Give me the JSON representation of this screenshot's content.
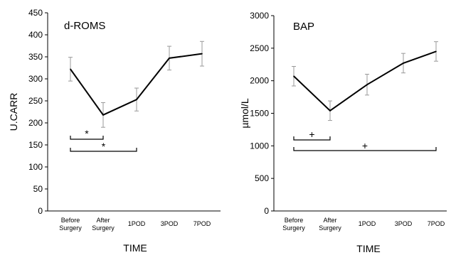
{
  "chart_data": [
    {
      "type": "line",
      "title": "d-ROMS",
      "xlabel": "TIME",
      "ylabel": "U.CARR",
      "ylim": [
        0,
        450
      ],
      "yticks": [
        0,
        50,
        100,
        150,
        200,
        250,
        300,
        350,
        400,
        450
      ],
      "categories": [
        [
          "Before",
          "Surgery"
        ],
        [
          "After",
          "Surgery"
        ],
        [
          "1POD"
        ],
        [
          "3POD"
        ],
        [
          "7POD"
        ]
      ],
      "series": [
        {
          "values": [
            322,
            218,
            253,
            347,
            357
          ],
          "errors": [
            27,
            28,
            26,
            27,
            28
          ]
        }
      ],
      "significance": [
        {
          "symbol": "*",
          "from": 0,
          "to": 1
        },
        {
          "symbol": "*",
          "from": 0,
          "to": 2
        }
      ],
      "grid": false
    },
    {
      "type": "line",
      "title": "BAP",
      "xlabel": "TIME",
      "ylabel": "µmol/L",
      "ylim": [
        0,
        3000
      ],
      "yticks": [
        0,
        500,
        1000,
        1500,
        2000,
        2500,
        3000
      ],
      "categories": [
        [
          "Before",
          "Surgery"
        ],
        [
          "After",
          "Surgery"
        ],
        [
          "1POD"
        ],
        [
          "3POD"
        ],
        [
          "7POD"
        ]
      ],
      "series": [
        {
          "values": [
            2070,
            1540,
            1940,
            2270,
            2450
          ],
          "errors": [
            150,
            150,
            160,
            150,
            150
          ]
        }
      ],
      "significance": [
        {
          "symbol": "+",
          "from": 0,
          "to": 1
        },
        {
          "symbol": "+",
          "from": 0,
          "to": 4
        }
      ],
      "grid": false
    }
  ]
}
